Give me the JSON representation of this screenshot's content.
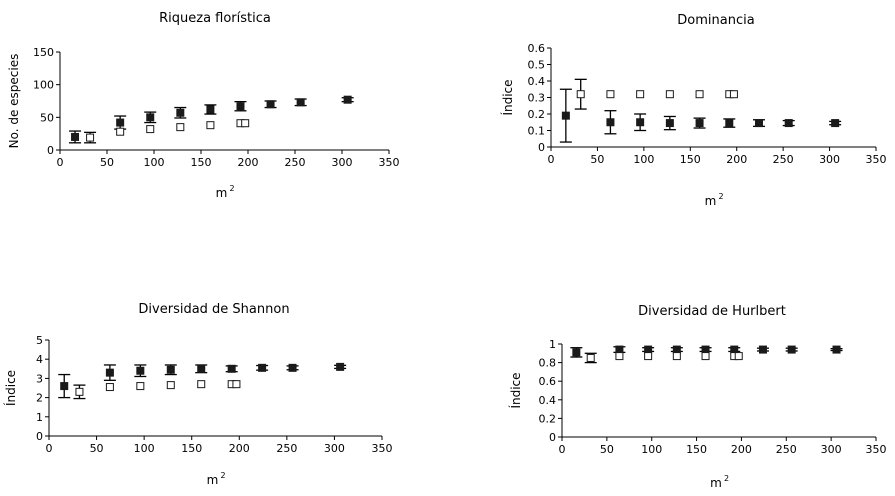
{
  "chart_data": [
    {
      "type": "scatter",
      "title": "Riqueza florística",
      "xlabel": "m",
      "xlabel_sup": "2",
      "ylabel": "No. de especies",
      "xlim": [
        0,
        350
      ],
      "ylim": [
        0,
        150
      ],
      "xticks": [
        0,
        50,
        100,
        150,
        200,
        250,
        300,
        350
      ],
      "yticks": [
        0,
        50,
        100,
        150
      ],
      "grid": false,
      "series": [
        {
          "marker": "filled-square",
          "x": [
            16,
            64,
            96,
            128,
            160,
            192,
            224,
            256,
            306
          ],
          "y": [
            20,
            42,
            50,
            57,
            62,
            67,
            70,
            73,
            77
          ],
          "err": [
            9,
            10,
            8,
            8,
            7,
            7,
            5,
            5,
            3
          ]
        },
        {
          "marker": "open-square",
          "x": [
            32,
            64,
            96,
            128,
            160,
            192,
            197
          ],
          "y": [
            19,
            28,
            32,
            35,
            38,
            41,
            41
          ],
          "err": [
            8,
            0,
            0,
            0,
            0,
            0,
            0
          ]
        }
      ]
    },
    {
      "type": "scatter",
      "title": "Dominancia",
      "xlabel": "m",
      "xlabel_sup": "2",
      "ylabel": "Índice",
      "xlim": [
        0,
        350
      ],
      "ylim": [
        0,
        0.6
      ],
      "xticks": [
        0,
        50,
        100,
        150,
        200,
        250,
        300,
        350
      ],
      "yticks": [
        0,
        0.1,
        0.2,
        0.3,
        0.4,
        0.5,
        0.6
      ],
      "grid": false,
      "series": [
        {
          "marker": "filled-square",
          "x": [
            16,
            64,
            96,
            128,
            160,
            192,
            224,
            256,
            306
          ],
          "y": [
            0.19,
            0.15,
            0.15,
            0.145,
            0.145,
            0.145,
            0.145,
            0.145,
            0.145
          ],
          "err": [
            0.16,
            0.07,
            0.05,
            0.04,
            0.03,
            0.025,
            0.02,
            0.015,
            0.01
          ]
        },
        {
          "marker": "open-square",
          "x": [
            32,
            64,
            96,
            128,
            160,
            192,
            197
          ],
          "y": [
            0.32,
            0.32,
            0.32,
            0.32,
            0.32,
            0.32,
            0.32
          ],
          "err": [
            0.09,
            0,
            0,
            0,
            0,
            0,
            0
          ]
        }
      ]
    },
    {
      "type": "scatter",
      "title": "Diversidad de Shannon",
      "xlabel": "m",
      "xlabel_sup": "2",
      "ylabel": "Índice",
      "xlim": [
        0,
        350
      ],
      "ylim": [
        0,
        5
      ],
      "xticks": [
        0,
        50,
        100,
        150,
        200,
        250,
        300,
        350
      ],
      "yticks": [
        0,
        1,
        2,
        3,
        4,
        5
      ],
      "grid": false,
      "series": [
        {
          "marker": "filled-square",
          "x": [
            16,
            64,
            96,
            128,
            160,
            192,
            224,
            256,
            306
          ],
          "y": [
            2.6,
            3.3,
            3.4,
            3.45,
            3.5,
            3.5,
            3.55,
            3.55,
            3.6
          ],
          "err": [
            0.6,
            0.4,
            0.3,
            0.25,
            0.2,
            0.15,
            0.12,
            0.1,
            0.08
          ]
        },
        {
          "marker": "open-square",
          "x": [
            32,
            64,
            96,
            128,
            160,
            192,
            197
          ],
          "y": [
            2.3,
            2.55,
            2.6,
            2.65,
            2.7,
            2.7,
            2.7
          ],
          "err": [
            0.35,
            0,
            0,
            0,
            0,
            0,
            0
          ]
        }
      ]
    },
    {
      "type": "scatter",
      "title": "Diversidad de Hurlbert",
      "xlabel": "m",
      "xlabel_sup": "2",
      "ylabel": "Índice",
      "xlim": [
        0,
        350
      ],
      "ylim": [
        0,
        1
      ],
      "xticks": [
        0,
        50,
        100,
        150,
        200,
        250,
        300,
        350
      ],
      "yticks": [
        0,
        0.2,
        0.4,
        0.6,
        0.8,
        1
      ],
      "grid": false,
      "series": [
        {
          "marker": "filled-square",
          "x": [
            16,
            64,
            96,
            128,
            160,
            192,
            224,
            256,
            306
          ],
          "y": [
            0.91,
            0.94,
            0.94,
            0.94,
            0.94,
            0.94,
            0.94,
            0.94,
            0.94
          ],
          "err": [
            0.05,
            0.03,
            0.02,
            0.02,
            0.02,
            0.02,
            0.015,
            0.015,
            0.01
          ]
        },
        {
          "marker": "open-square",
          "x": [
            32,
            64,
            96,
            128,
            160,
            192,
            197
          ],
          "y": [
            0.85,
            0.87,
            0.87,
            0.87,
            0.87,
            0.87,
            0.87
          ],
          "err": [
            0.05,
            0,
            0,
            0,
            0,
            0,
            0
          ]
        }
      ]
    }
  ]
}
